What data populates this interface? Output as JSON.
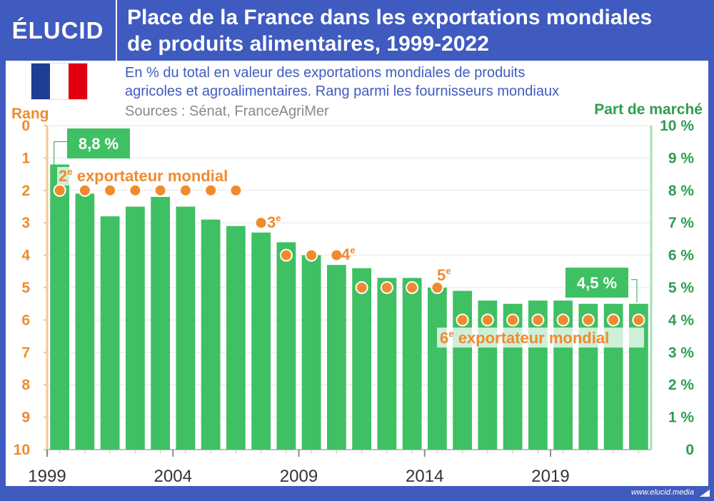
{
  "header": {
    "logo": "ÉLUCID",
    "title_line1": "Place de la France dans les exportations mondiales",
    "title_line2": "de produits alimentaires, 1999-2022",
    "subtitle_line1": "En % du total en valeur des exportations mondiales de produits",
    "subtitle_line2": "agricoles et agroalimentaires. Rang parmi les fournisseurs mondiaux",
    "sources": "Sources : Sénat, FranceAgriMer"
  },
  "footer": {
    "url": "www.elucid.media"
  },
  "colors": {
    "frame": "#3f5bbf",
    "bar": "#3fc063",
    "rank": "#ef8b2d",
    "share_axis": "#2e9e4f",
    "flag_blue": "#1c3f94",
    "flag_white": "#ffffff",
    "flag_red": "#e1000f"
  },
  "icons": {
    "logo_mark": "elucid-logo",
    "flag": "france-flag-icon",
    "footer": "arrow-icon"
  },
  "chart_data": {
    "type": "bar",
    "title": "Place de la France dans les exportations mondiales de produits alimentaires, 1999-2022",
    "years": [
      1999,
      2000,
      2001,
      2002,
      2003,
      2004,
      2005,
      2006,
      2007,
      2008,
      2009,
      2010,
      2011,
      2012,
      2013,
      2014,
      2015,
      2016,
      2017,
      2018,
      2019,
      2020,
      2021,
      2022
    ],
    "x_tick_labels": [
      "1999",
      "2004",
      "2009",
      "2014",
      "2019"
    ],
    "series": [
      {
        "name": "Part de marché",
        "axis": "right",
        "unit": "%",
        "values": [
          8.8,
          7.9,
          7.2,
          7.5,
          7.8,
          7.5,
          7.1,
          6.9,
          6.7,
          6.4,
          6.0,
          5.7,
          5.6,
          5.3,
          5.3,
          5.0,
          4.9,
          4.6,
          4.5,
          4.6,
          4.6,
          4.5,
          4.5,
          4.5
        ]
      },
      {
        "name": "Rang",
        "axis": "left",
        "values": [
          2,
          2,
          2,
          2,
          2,
          2,
          2,
          2,
          3,
          4,
          4,
          4,
          5,
          5,
          5,
          5,
          6,
          6,
          6,
          6,
          6,
          6,
          6,
          6
        ]
      }
    ],
    "left_axis": {
      "label": "Rang",
      "range": [
        0,
        10
      ],
      "inverted": true,
      "ticks": [
        "0",
        "1",
        "2",
        "3",
        "4",
        "5",
        "6",
        "7",
        "8",
        "9",
        "10"
      ]
    },
    "right_axis": {
      "label": "Part de marché",
      "range": [
        0,
        10
      ],
      "ticks": [
        "0",
        "1 %",
        "2 %",
        "3 %",
        "4 %",
        "5 %",
        "6 %",
        "7 %",
        "8 %",
        "9 %",
        "10 %"
      ]
    },
    "grid": true,
    "value_labels": {
      "first": "8,8 %",
      "last": "4,5 %"
    },
    "annotations": {
      "rank2": {
        "sup_num": "2",
        "sup": "e",
        "text": " exportateur mondial"
      },
      "rank3": {
        "num": "3",
        "sup": "e"
      },
      "rank4": {
        "num": "4",
        "sup": "e"
      },
      "rank5": {
        "num": "5",
        "sup": "e"
      },
      "rank6": {
        "num": "6",
        "sup": "e",
        "text": " exportateur mondial"
      }
    }
  }
}
